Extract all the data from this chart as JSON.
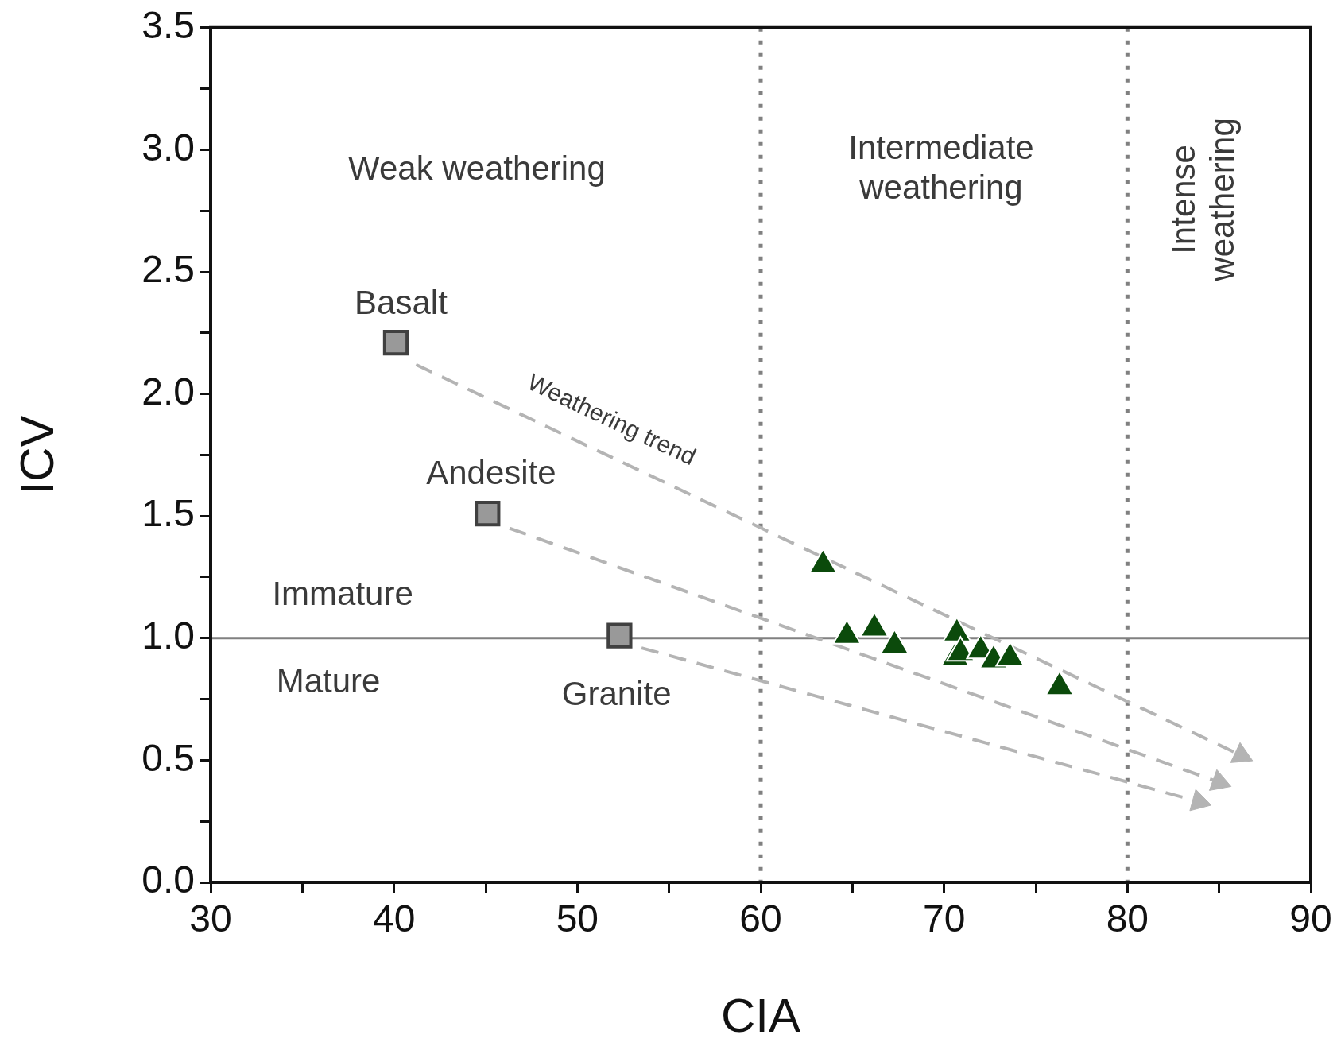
{
  "chart_data": {
    "type": "scatter",
    "xlabel": "CIA",
    "ylabel": "ICV",
    "xlim": [
      30,
      90
    ],
    "ylim": [
      0,
      3.5
    ],
    "xticks": [
      30,
      {
        "value": 35,
        "label": null
      },
      40,
      {
        "value": 45,
        "label": null
      },
      50,
      {
        "value": 55,
        "label": null
      },
      60,
      {
        "value": 65,
        "label": null
      },
      70,
      {
        "value": 75,
        "label": null
      },
      80,
      {
        "value": 85,
        "label": null
      },
      90
    ],
    "yticks": [
      {
        "value": 0,
        "label": "0.0"
      },
      {
        "value": 0.25,
        "label": null
      },
      {
        "value": 0.5,
        "label": "0.5"
      },
      {
        "value": 0.75,
        "label": null
      },
      {
        "value": 1,
        "label": "1.0"
      },
      {
        "value": 1.25,
        "label": null
      },
      {
        "value": 1.5,
        "label": "1.5"
      },
      {
        "value": 1.75,
        "label": null
      },
      {
        "value": 2,
        "label": "2.0"
      },
      {
        "value": 2.25,
        "label": null
      },
      {
        "value": 2.5,
        "label": "2.5"
      },
      {
        "value": 2.75,
        "label": null
      },
      {
        "value": 3,
        "label": "3.0"
      },
      {
        "value": 3.25,
        "label": null
      },
      {
        "value": 3.5,
        "label": "3.5"
      }
    ],
    "series": [
      {
        "type": "scatter",
        "marker": "square",
        "color": "#999999",
        "x": [
          40.1,
          45.1,
          52.3
        ],
        "values": [
          2.21,
          1.51,
          1.01
        ]
      },
      {
        "type": "scatter",
        "marker": "triangle",
        "color": "#0b4a0b",
        "x": [
          63.4,
          64.7,
          66.2,
          67.3,
          70.7,
          70.6,
          70.9,
          72.0,
          72.7,
          73.6,
          76.3
        ],
        "values": [
          1.3,
          1.01,
          1.04,
          0.97,
          1.02,
          0.92,
          0.94,
          0.95,
          0.91,
          0.92,
          0.8
        ]
      },
      {
        "type": "line",
        "line_style": "dashed",
        "color": "#b4b4b4",
        "x": [
          41.2,
          86.2
        ],
        "values": [
          2.12,
          0.52
        ]
      },
      {
        "type": "line",
        "line_style": "dashed",
        "color": "#b4b4b4",
        "x": [
          46.3,
          85.0
        ],
        "values": [
          1.45,
          0.41
        ]
      },
      {
        "type": "line",
        "line_style": "dashed",
        "color": "#b4b4b4",
        "x": [
          53.5,
          83.9
        ],
        "values": [
          0.96,
          0.33
        ]
      }
    ],
    "ref_lines": [
      {
        "axis": "x",
        "value": 60,
        "color": "#808080",
        "line_style": "dotted"
      },
      {
        "axis": "x",
        "value": 80,
        "color": "#808080",
        "line_style": "dotted"
      },
      {
        "axis": "y",
        "value": 1,
        "color": "#808080",
        "line_style": "solid"
      }
    ],
    "grid": false,
    "legend": false,
    "annotations": [
      "Weak weathering",
      "Intermediate\nweathering",
      "Intense\nweathering",
      "Basalt",
      "Andesite",
      "Granite",
      "Immature",
      "Mature",
      "Weathering trend"
    ]
  }
}
